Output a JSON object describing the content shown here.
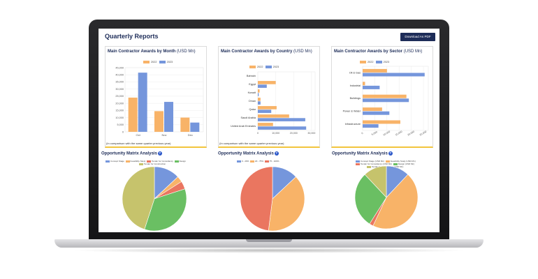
{
  "header": {
    "title": "Quarterly Reports",
    "download_label": "Download As PDF"
  },
  "colors": {
    "series_2022": "#f8b368",
    "series_2023": "#7596dc",
    "accent": "#1d2c58",
    "pie_blue": "#7596dc",
    "pie_orange": "#f8b368",
    "pie_red": "#ea7660",
    "pie_green": "#6abf63",
    "pie_olive": "#c6c36c"
  },
  "note": "(In comparison with the same quarter previous year)",
  "month_card": {
    "title": "Main Contractor Awards by Month",
    "unit": "(USD Mn)"
  },
  "country_card": {
    "title": "Main Contractor Awards by Country",
    "unit": "(USD Mn)"
  },
  "sector_card": {
    "title": "Main Contractor Awards by Sector",
    "unit": "(USD Mn)"
  },
  "matrix_title": "Opportunity Matrix Analysis",
  "chart_data": [
    {
      "type": "bar",
      "categories": [
        "Oct",
        "Nov",
        "Dec"
      ],
      "series": [
        {
          "name": "2022",
          "values": [
            24000,
            14500,
            10000
          ]
        },
        {
          "name": "2023",
          "values": [
            41500,
            21000,
            6500
          ]
        }
      ],
      "ylim": [
        0,
        45000
      ],
      "yticks": [
        "0",
        "5,000",
        "10,000",
        "15,000",
        "20,000",
        "25,000",
        "30,000",
        "35,000",
        "40,000",
        "45,000"
      ]
    },
    {
      "type": "bar",
      "orientation": "horizontal",
      "categories": [
        "Bahrain",
        "Egypt",
        "Kuwait",
        "Oman",
        "Qatar",
        "Saudi Arabia",
        "United Arab Emirates"
      ],
      "series": [
        {
          "name": "2022",
          "values": [
            0,
            10000,
            1000,
            1500,
            10500,
            17500,
            8500
          ]
        },
        {
          "name": "2023",
          "values": [
            0,
            5000,
            500,
            1500,
            7500,
            26500,
            27000
          ]
        }
      ],
      "xlim": [
        0,
        32000
      ],
      "xticks": [
        "0",
        "10,000",
        "20,000",
        "30,000"
      ]
    },
    {
      "type": "bar",
      "orientation": "horizontal",
      "categories": [
        "Oil & Gas",
        "Industrial",
        "Buildings",
        "Power & Water",
        "Infrastructure"
      ],
      "series": [
        {
          "name": "2022",
          "values": [
            10000,
            1000,
            18000,
            8000,
            15500
          ]
        },
        {
          "name": "2023",
          "values": [
            25500,
            7000,
            19000,
            11000,
            6500
          ]
        }
      ],
      "xlim": [
        0,
        27000
      ],
      "xticks": [
        "0",
        "5,000",
        "10,000",
        "15,000",
        "20,000",
        "25,000"
      ]
    },
    {
      "type": "pie",
      "labels": [
        "Concept Stage",
        "Feasibility Study",
        "Tender for Consultancy",
        "Design",
        "Tender for Construction"
      ],
      "values": [
        13,
        3,
        4,
        35,
        45
      ],
      "colors": [
        "#7596dc",
        "#f8b368",
        "#ea7660",
        "#6abf63",
        "#c6c36c"
      ]
    },
    {
      "type": "pie",
      "labels": [
        "0 - 20%",
        "20 - 75%",
        "75 - 100%"
      ],
      "values": [
        13,
        39,
        48
      ],
      "colors": [
        "#7596dc",
        "#f8b368",
        "#ea7660"
      ]
    },
    {
      "type": "pie",
      "labels": [
        "Concept Stage (USD Mn)",
        "Feasibility Study (USD Mn)",
        "Tender for Consultancy (USD Mn)",
        "Design (USD Mn)",
        "Tender for Construction (USD Mn)"
      ],
      "values": [
        12,
        45,
        2,
        29,
        12
      ],
      "colors": [
        "#7596dc",
        "#f8b368",
        "#ea7660",
        "#6abf63",
        "#c6c36c"
      ]
    }
  ]
}
